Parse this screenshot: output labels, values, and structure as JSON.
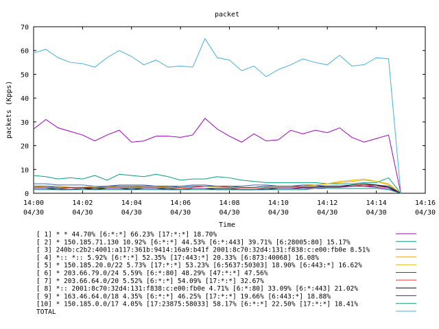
{
  "chart_data": {
    "type": "line",
    "title": "packet",
    "xlabel": "Time",
    "ylabel": "packets (Kpps)",
    "ylim": [
      0,
      70
    ],
    "yticks": [
      "0",
      "10",
      "20",
      "30",
      "40",
      "50",
      "60",
      "70"
    ],
    "xticks": [
      {
        "time": "14:00",
        "date": "04/30"
      },
      {
        "time": "14:02",
        "date": "04/30"
      },
      {
        "time": "14:04",
        "date": "04/30"
      },
      {
        "time": "14:06",
        "date": "04/30"
      },
      {
        "time": "14:08",
        "date": "04/30"
      },
      {
        "time": "14:10",
        "date": "04/30"
      },
      {
        "time": "14:12",
        "date": "04/30"
      },
      {
        "time": "14:14",
        "date": "04/30"
      },
      {
        "time": "14:16",
        "date": "04/30"
      }
    ],
    "x_minutes": [
      0,
      0.5,
      1,
      1.5,
      2,
      2.5,
      3,
      3.5,
      4,
      4.5,
      5,
      5.5,
      6,
      6.5,
      7,
      7.5,
      8,
      8.5,
      9,
      9.5,
      10,
      10.5,
      11,
      11.5,
      12,
      12.5,
      13,
      13.5,
      14,
      14.5,
      15
    ],
    "grid": false,
    "legend_position": "bottom",
    "series": [
      {
        "name": "[ 1] * * 44.70%  [6:*:*] 66.23% [17:*:*] 18.70%",
        "color": "#a000c0",
        "values": [
          27,
          31,
          27.5,
          26,
          24.5,
          22,
          24.5,
          26.5,
          21.5,
          22,
          24,
          24,
          23.5,
          24.5,
          31.5,
          27,
          24,
          21.5,
          25,
          22,
          22.5,
          26.5,
          25,
          26.5,
          25.5,
          27.5,
          23.5,
          21.5,
          23,
          24.5,
          0
        ]
      },
      {
        "name": "[ 2] * 150.185.71.130 10.92%  [6:*:*] 44.53% [6:*:443] 39.71% [6:28005:80] 15.17%",
        "color": "#00a080",
        "values": [
          7.5,
          7,
          6,
          6.5,
          6,
          7.5,
          5.5,
          8,
          7.5,
          7,
          8,
          7,
          5.5,
          6,
          6,
          7,
          6.5,
          5.5,
          5,
          4.5,
          4.5,
          4.5,
          4.5,
          4.5,
          4,
          4,
          4,
          4.5,
          4.5,
          6.5,
          0
        ]
      },
      {
        "name": "[ 3] 240b:c2b2:4001:a117:361b:9414:16a9:b41f 2001:8c70:32d4:131:f838:c:e00:fb0e 8.51%",
        "color": "#4060c0",
        "values": [
          4,
          4,
          3.5,
          3.5,
          3.5,
          3,
          3,
          3.5,
          3.5,
          3.5,
          3,
          3,
          3,
          3.5,
          3.5,
          3,
          3,
          3,
          3.5,
          3.5,
          3,
          3,
          3.5,
          3.5,
          3,
          3,
          3,
          3.5,
          3.5,
          3,
          0
        ]
      },
      {
        "name": "[ 4] *:: *:: 5.92%  [6:*:*] 52.35% [17:443:*] 20.33% [6:873:40068] 16.08%",
        "color": "#f0a000",
        "values": [
          3,
          3,
          3,
          2.5,
          2.5,
          3,
          3,
          3,
          3,
          3,
          3,
          2.5,
          2.5,
          3,
          3,
          3,
          3,
          2.5,
          2.5,
          3,
          3,
          3,
          3,
          3.5,
          4,
          4.5,
          5,
          5.5,
          5,
          4,
          0
        ]
      },
      {
        "name": "[ 5] * 150.185.20.0/22 5.73%  [17:*:*] 53.23% [6:5637:50303] 18.90% [6:443:*] 16.62%",
        "color": "#e0c000",
        "values": [
          2.5,
          3,
          2.5,
          2.5,
          2.5,
          2,
          2.5,
          3,
          3,
          2.5,
          2.5,
          2.5,
          2,
          2.5,
          3,
          2.5,
          2.5,
          2.5,
          2.5,
          3,
          3,
          3,
          3,
          3.5,
          4,
          5,
          5.5,
          6,
          5,
          3.5,
          0
        ]
      },
      {
        "name": "[ 6] * 203.66.79.0/24 5.59%  [6:*:80] 48.29% [47:*:*] 47.56%",
        "color": "#0060a0",
        "values": [
          3,
          3,
          2.5,
          2.5,
          2.5,
          2.5,
          3,
          3,
          3,
          3,
          3,
          3,
          2.5,
          3,
          3,
          3,
          3,
          2.5,
          2.5,
          3,
          3,
          3,
          3,
          3,
          3,
          3,
          3,
          3,
          3,
          3,
          0
        ]
      },
      {
        "name": "[ 7] * 203.66.64.0/20 5.52%  [6:*:*] 54.09% [17:*:*] 32.67%",
        "color": "#e04040",
        "values": [
          2.5,
          2.5,
          2.5,
          2,
          2,
          2.5,
          2.5,
          2.5,
          2.5,
          2.5,
          2.5,
          2.5,
          2,
          2.5,
          3,
          3,
          2.5,
          2,
          2,
          2.5,
          2.5,
          2.5,
          3,
          3,
          3,
          3,
          3,
          3.5,
          3,
          2.5,
          0
        ]
      },
      {
        "name": "[ 8] *:: 2001:8c70:32d4:131:f838:c:e00:fb0e 4.71%  [6:*:80] 33.09% [6:*:443] 21.02%",
        "color": "#000000",
        "values": [
          2,
          2,
          2,
          1.5,
          2,
          2,
          2,
          2,
          2,
          2,
          2,
          2,
          1.5,
          2,
          2,
          2,
          2,
          1.5,
          1.5,
          2,
          2,
          2,
          2.5,
          2.5,
          3,
          3,
          3.5,
          4,
          3.5,
          2.5,
          0
        ]
      },
      {
        "name": "[ 9] * 163.46.64.0/18 4.35%  [6:*:*] 46.25% [17:*:*] 19.66% [6:443:*] 18.88%",
        "color": "#8000a0",
        "values": [
          2,
          2,
          1.5,
          1.5,
          2,
          1.5,
          2,
          2,
          1.5,
          2,
          2,
          1.5,
          1.5,
          2,
          2,
          1.5,
          1.5,
          1.5,
          1.5,
          1.5,
          2,
          2,
          2,
          2,
          2.5,
          2.5,
          3,
          3,
          2.5,
          2,
          0
        ]
      },
      {
        "name": "[10] * 150.185.0.0/17 4.05%  [17:23875:58033] 58.17% [6:*:*] 22.50% [17:*:*] 18.41%",
        "color": "#109080",
        "values": [
          1.5,
          1.5,
          1.5,
          1.5,
          1.5,
          1.5,
          1.5,
          1.5,
          1.5,
          1.5,
          1.5,
          1.5,
          1.5,
          1.5,
          1.5,
          1.5,
          1.5,
          1.5,
          1.5,
          1.5,
          1.5,
          1.5,
          1.5,
          2,
          2,
          2,
          2,
          2,
          2,
          1.5,
          0
        ]
      },
      {
        "name": "TOTAL",
        "color": "#40b0e0",
        "values": [
          59,
          60.5,
          57,
          55,
          54.5,
          53,
          57,
          60,
          57.5,
          54,
          56,
          53,
          53.5,
          53,
          65,
          57,
          56,
          51.5,
          53.5,
          49,
          52,
          54,
          56.5,
          55,
          54,
          58,
          53.5,
          54,
          57,
          56.5,
          0
        ]
      }
    ]
  }
}
